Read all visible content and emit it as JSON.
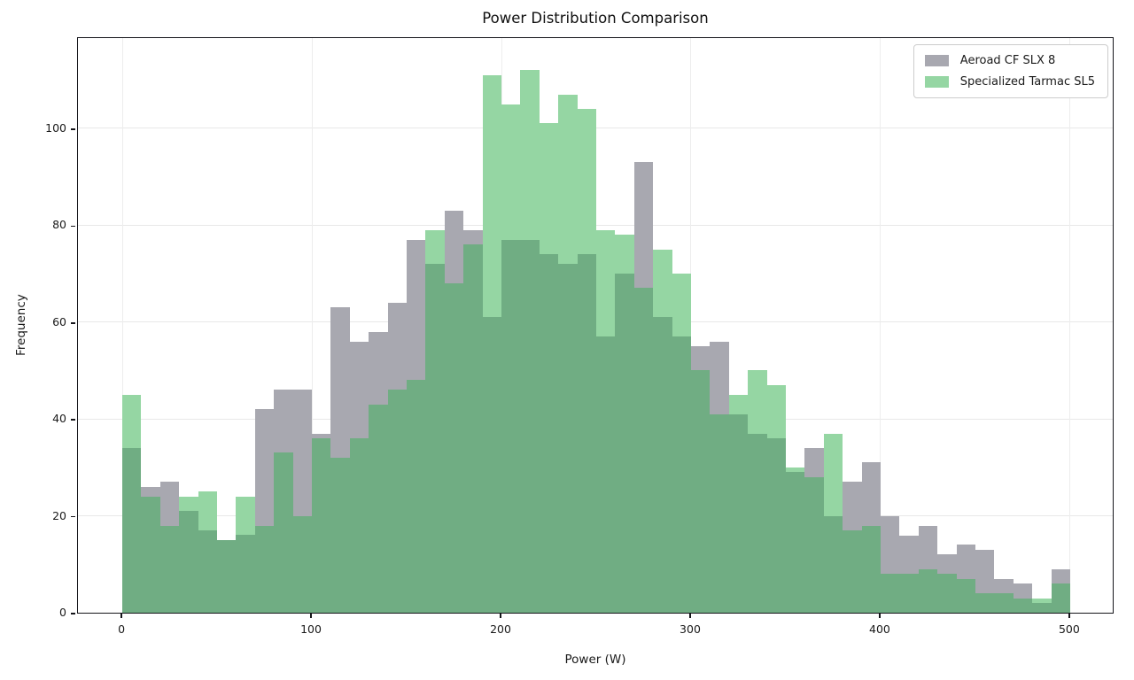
{
  "title": "Power Distribution Comparison",
  "x_axis_label": "Power (W)",
  "y_axis_label": "Frequency",
  "legend": [
    {
      "label": "Aeroad CF SLX 8",
      "color": "#a8a8b0"
    },
    {
      "label": "Specialized Tarmac SL5",
      "color": "#95d6a3"
    }
  ],
  "colors": {
    "gray_series": "#a8a8b0",
    "green_series": "#95d6a3",
    "overlap": "#70ad83",
    "grid": "#e8e8e8",
    "spine": "#15151a",
    "background": "#ffffff"
  },
  "chart_data": {
    "type": "bar",
    "subtype": "overlapping-histogram",
    "title": "Power Distribution Comparison",
    "xlabel": "Power (W)",
    "ylabel": "Frequency",
    "bin_start": 0,
    "bin_width": 10,
    "xlim": [
      -23.4,
      523.4
    ],
    "ylim": [
      0,
      119
    ],
    "xticks": [
      0,
      100,
      200,
      300,
      400,
      500
    ],
    "yticks": [
      0,
      20,
      40,
      60,
      80,
      100
    ],
    "grid": true,
    "legend_position": "upper right",
    "series": [
      {
        "name": "Aeroad CF SLX 8",
        "values": [
          34,
          26,
          27,
          21,
          17,
          15,
          16,
          42,
          46,
          46,
          37,
          63,
          56,
          58,
          64,
          77,
          72,
          83,
          79,
          61,
          77,
          77,
          74,
          72,
          74,
          57,
          70,
          93,
          61,
          57,
          55,
          56,
          41,
          37,
          36,
          29,
          34,
          20,
          27,
          31,
          20,
          16,
          18,
          12,
          14,
          13,
          7,
          6,
          2,
          9
        ]
      },
      {
        "name": "Specialized Tarmac SL5",
        "values": [
          45,
          24,
          18,
          24,
          25,
          15,
          24,
          18,
          33,
          20,
          36,
          32,
          36,
          43,
          46,
          48,
          79,
          68,
          76,
          111,
          105,
          112,
          101,
          107,
          104,
          79,
          78,
          67,
          75,
          70,
          50,
          41,
          45,
          50,
          47,
          30,
          28,
          37,
          17,
          18,
          8,
          8,
          9,
          8,
          7,
          4,
          4,
          3,
          3,
          6
        ]
      }
    ]
  }
}
